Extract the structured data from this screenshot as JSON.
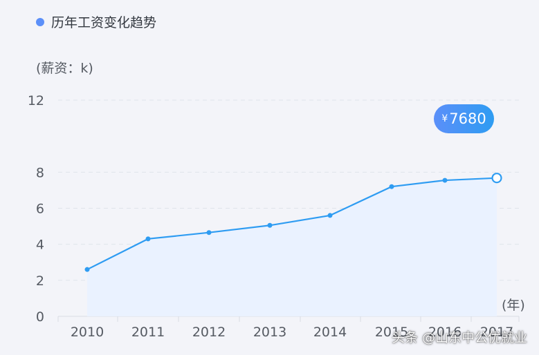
{
  "legend": {
    "label": "历年工资变化趋势",
    "color": "#5b8ff9"
  },
  "y_unit_label": "(薪资：k)",
  "x_unit_label": "(年)",
  "tooltip": {
    "currency": "¥",
    "value": "7680"
  },
  "watermark": "头条 @山东中公优就业",
  "chart_data": {
    "type": "area",
    "title": "",
    "categories": [
      "2010",
      "2011",
      "2012",
      "2013",
      "2014",
      "2015",
      "2016",
      "2017"
    ],
    "series": [
      {
        "name": "历年工资变化趋势",
        "values": [
          2.6,
          4.3,
          4.65,
          5.05,
          5.6,
          7.2,
          7.55,
          7.68
        ]
      }
    ],
    "y_ticks": [
      0,
      2,
      4,
      6,
      8,
      12
    ],
    "ylim": [
      0,
      12
    ],
    "grid": true,
    "colors": {
      "line": "#2e9cf2",
      "area": "#eaf2ff",
      "grid": "#dfe3ea"
    }
  }
}
